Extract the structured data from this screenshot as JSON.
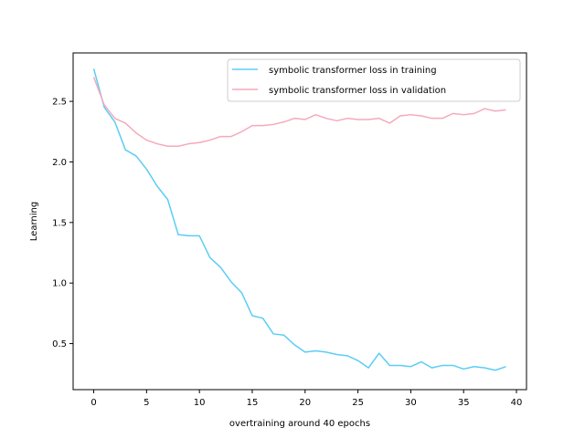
{
  "chart_data": {
    "type": "line",
    "xlabel": "overtraining around 40 epochs",
    "ylabel": "Learning",
    "xlim": [
      -1.95,
      40.95
    ],
    "ylim": [
      0.12,
      2.9
    ],
    "xticks": [
      0,
      5,
      10,
      15,
      20,
      25,
      30,
      35,
      40
    ],
    "yticks": [
      0.5,
      1.0,
      1.5,
      2.0,
      2.5
    ],
    "ytick_labels": [
      "0.5",
      "1.0",
      "1.5",
      "2.0",
      "2.5"
    ],
    "grid": false,
    "legend_position": "top-right",
    "x": [
      0,
      1,
      2,
      3,
      4,
      5,
      6,
      7,
      8,
      9,
      10,
      11,
      12,
      13,
      14,
      15,
      16,
      17,
      18,
      19,
      20,
      21,
      22,
      23,
      24,
      25,
      26,
      27,
      28,
      29,
      30,
      31,
      32,
      33,
      34,
      35,
      36,
      37,
      38,
      39
    ],
    "series": [
      {
        "name": "symbolic transformer loss in training",
        "color": "#5bcdf5",
        "values": [
          2.77,
          2.45,
          2.33,
          2.1,
          2.05,
          1.94,
          1.8,
          1.69,
          1.4,
          1.39,
          1.39,
          1.21,
          1.13,
          1.01,
          0.92,
          0.73,
          0.71,
          0.58,
          0.57,
          0.49,
          0.43,
          0.44,
          0.43,
          0.41,
          0.4,
          0.36,
          0.3,
          0.42,
          0.32,
          0.32,
          0.31,
          0.35,
          0.3,
          0.32,
          0.32,
          0.29,
          0.31,
          0.3,
          0.28,
          0.31
        ]
      },
      {
        "name": "symbolic transformer loss in validation",
        "color": "#f5a9bb",
        "values": [
          2.7,
          2.47,
          2.36,
          2.32,
          2.24,
          2.18,
          2.15,
          2.13,
          2.13,
          2.15,
          2.16,
          2.18,
          2.21,
          2.21,
          2.25,
          2.3,
          2.3,
          2.31,
          2.33,
          2.36,
          2.35,
          2.39,
          2.36,
          2.34,
          2.36,
          2.35,
          2.35,
          2.36,
          2.32,
          2.38,
          2.39,
          2.38,
          2.36,
          2.36,
          2.4,
          2.39,
          2.4,
          2.44,
          2.42,
          2.43
        ]
      }
    ]
  }
}
